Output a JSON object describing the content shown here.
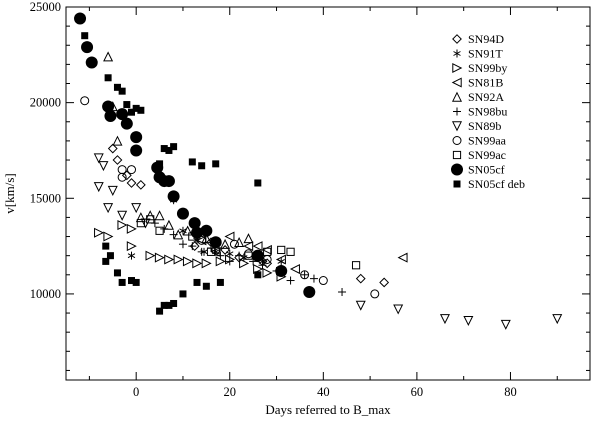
{
  "chart_data": {
    "type": "scatter",
    "title": "",
    "xlabel": "Days referred to B_max",
    "ylabel": "v[km/s]",
    "xlim": [
      -15,
      97
    ],
    "ylim": [
      5500,
      25000
    ],
    "xticks": [
      0,
      20,
      40,
      60,
      80
    ],
    "xtick_labels": [
      "0",
      "20",
      "40",
      "60",
      "80"
    ],
    "yticks": [
      10000,
      15000,
      20000,
      25000
    ],
    "ytick_labels": [
      "10000",
      "15000",
      "20000",
      "25000"
    ],
    "grid": false,
    "legend_position": "top-right",
    "series": [
      {
        "name": "SN94D",
        "marker": "diamond-open",
        "color": "#000000",
        "points": [
          [
            -5,
            17600
          ],
          [
            -4,
            17000
          ],
          [
            -2,
            16200
          ],
          [
            -1,
            15800
          ],
          [
            1,
            15700
          ],
          [
            12.5,
            12500
          ],
          [
            16,
            12700
          ],
          [
            19,
            12300
          ],
          [
            22,
            11900
          ],
          [
            27,
            11700
          ],
          [
            28,
            11600
          ],
          [
            48,
            10800
          ],
          [
            53,
            10600
          ]
        ]
      },
      {
        "name": "SN91T",
        "marker": "asterisk",
        "color": "#000000",
        "points": [
          [
            -1,
            12000
          ],
          [
            8,
            14900
          ],
          [
            10,
            13300
          ],
          [
            13,
            12800
          ],
          [
            14.5,
            12200
          ],
          [
            17,
            12200
          ],
          [
            20,
            12100
          ],
          [
            23,
            11900
          ],
          [
            27,
            11700
          ],
          [
            31,
            11700
          ]
        ]
      },
      {
        "name": "SN99by",
        "marker": "triangle-right-open",
        "color": "#000000",
        "points": [
          [
            -8,
            13200
          ],
          [
            -6,
            13000
          ],
          [
            -3,
            13600
          ],
          [
            -1,
            13400
          ],
          [
            -1,
            12500
          ],
          [
            3,
            12000
          ],
          [
            5,
            11900
          ],
          [
            7,
            11800
          ],
          [
            9,
            11800
          ],
          [
            11,
            11700
          ],
          [
            13,
            11600
          ],
          [
            15,
            11600
          ],
          [
            18,
            11700
          ],
          [
            20,
            11800
          ],
          [
            23,
            11600
          ],
          [
            26,
            11300
          ],
          [
            28,
            11100
          ],
          [
            31,
            10900
          ]
        ]
      },
      {
        "name": "SN81B",
        "marker": "triangle-left-open",
        "color": "#000000",
        "points": [
          [
            14,
            12800
          ],
          [
            17,
            12200
          ],
          [
            20,
            13000
          ],
          [
            24,
            12500
          ],
          [
            26,
            12500
          ],
          [
            28,
            12300
          ],
          [
            31,
            11800
          ],
          [
            34,
            11300
          ],
          [
            57,
            11900
          ]
        ]
      },
      {
        "name": "SN92A",
        "marker": "triangle-up-open",
        "color": "#000000",
        "points": [
          [
            -6,
            22400
          ],
          [
            -5,
            19800
          ],
          [
            -4,
            18000
          ],
          [
            1,
            14000
          ],
          [
            3,
            14100
          ],
          [
            5,
            14100
          ],
          [
            7,
            13600
          ],
          [
            9,
            13100
          ],
          [
            11,
            13300
          ],
          [
            15,
            12900
          ],
          [
            19,
            12600
          ],
          [
            22,
            12700
          ],
          [
            24,
            12900
          ]
        ]
      },
      {
        "name": "SN98bu",
        "marker": "plus",
        "color": "#000000",
        "points": [
          [
            4,
            13700
          ],
          [
            6,
            13400
          ],
          [
            8,
            13100
          ],
          [
            10,
            12600
          ],
          [
            12,
            12500
          ],
          [
            14,
            12200
          ],
          [
            16,
            12400
          ],
          [
            18,
            12000
          ],
          [
            20,
            11700
          ],
          [
            22,
            12000
          ],
          [
            25,
            11700
          ],
          [
            27,
            11500
          ],
          [
            30,
            11200
          ],
          [
            33,
            10700
          ],
          [
            36,
            11000
          ],
          [
            38,
            10800
          ],
          [
            44,
            10100
          ]
        ]
      },
      {
        "name": "SN89b",
        "marker": "triangle-down-open",
        "color": "#000000",
        "points": [
          [
            -8,
            17100
          ],
          [
            -7,
            16700
          ],
          [
            -8,
            15600
          ],
          [
            -6,
            14500
          ],
          [
            -5,
            15400
          ],
          [
            -3,
            14100
          ],
          [
            0,
            14500
          ],
          [
            2,
            13700
          ],
          [
            48,
            9400
          ],
          [
            56,
            9200
          ],
          [
            66,
            8700
          ],
          [
            71,
            8600
          ],
          [
            79,
            8400
          ],
          [
            90,
            8700
          ]
        ]
      },
      {
        "name": "SN99aa",
        "marker": "circle-open",
        "color": "#000000",
        "points": [
          [
            -11,
            20100
          ],
          [
            -3,
            16500
          ],
          [
            -3,
            16100
          ],
          [
            -1,
            16500
          ],
          [
            14,
            12800
          ],
          [
            17,
            12300
          ],
          [
            21,
            12600
          ],
          [
            24,
            12100
          ],
          [
            26,
            11900
          ],
          [
            28,
            11800
          ],
          [
            36,
            11000
          ],
          [
            40,
            10700
          ],
          [
            51,
            10000
          ]
        ]
      },
      {
        "name": "SN99ac",
        "marker": "square-open",
        "color": "#000000",
        "points": [
          [
            1,
            13700
          ],
          [
            3,
            13900
          ],
          [
            5,
            13300
          ],
          [
            12,
            13000
          ],
          [
            16,
            12200
          ],
          [
            24,
            12000
          ],
          [
            28,
            12200
          ],
          [
            31,
            12300
          ],
          [
            33,
            12200
          ],
          [
            47,
            11500
          ]
        ]
      },
      {
        "name": "SN05cf",
        "marker": "circle-filled",
        "color": "#000000",
        "points": [
          [
            -12,
            24400
          ],
          [
            -10.5,
            22900
          ],
          [
            -9.5,
            22100
          ],
          [
            -6,
            19800
          ],
          [
            -5.5,
            19300
          ],
          [
            -3,
            19400
          ],
          [
            -2,
            18900
          ],
          [
            0,
            18200
          ],
          [
            0,
            17500
          ],
          [
            4.5,
            16600
          ],
          [
            5,
            16100
          ],
          [
            6,
            15900
          ],
          [
            7,
            15900
          ],
          [
            8,
            15100
          ],
          [
            10,
            14200
          ],
          [
            12.5,
            13700
          ],
          [
            13,
            13200
          ],
          [
            15,
            13300
          ],
          [
            17,
            12700
          ],
          [
            26,
            12000
          ],
          [
            31,
            11200
          ],
          [
            37,
            10100
          ]
        ]
      },
      {
        "name": "SN05cf deb",
        "marker": "square-filled",
        "color": "#000000",
        "points": [
          [
            -11,
            23500
          ],
          [
            -6,
            21300
          ],
          [
            -4,
            20800
          ],
          [
            -3,
            20600
          ],
          [
            -2,
            19900
          ],
          [
            0,
            19700
          ],
          [
            1,
            19600
          ],
          [
            -1,
            19500
          ],
          [
            5,
            16800
          ],
          [
            6,
            17600
          ],
          [
            7,
            17500
          ],
          [
            8,
            17700
          ],
          [
            12,
            16900
          ],
          [
            14,
            16700
          ],
          [
            17,
            16800
          ],
          [
            26,
            15800
          ],
          [
            -6.5,
            12500
          ],
          [
            -6.5,
            11700
          ],
          [
            -5.5,
            12000
          ],
          [
            -4,
            11100
          ],
          [
            -3,
            10600
          ],
          [
            -1,
            10700
          ],
          [
            0,
            10600
          ],
          [
            5,
            9100
          ],
          [
            6,
            9400
          ],
          [
            7,
            9400
          ],
          [
            8,
            9500
          ],
          [
            10,
            10000
          ],
          [
            13,
            10600
          ],
          [
            15,
            10400
          ],
          [
            18,
            10600
          ],
          [
            26,
            11000
          ]
        ]
      }
    ]
  }
}
